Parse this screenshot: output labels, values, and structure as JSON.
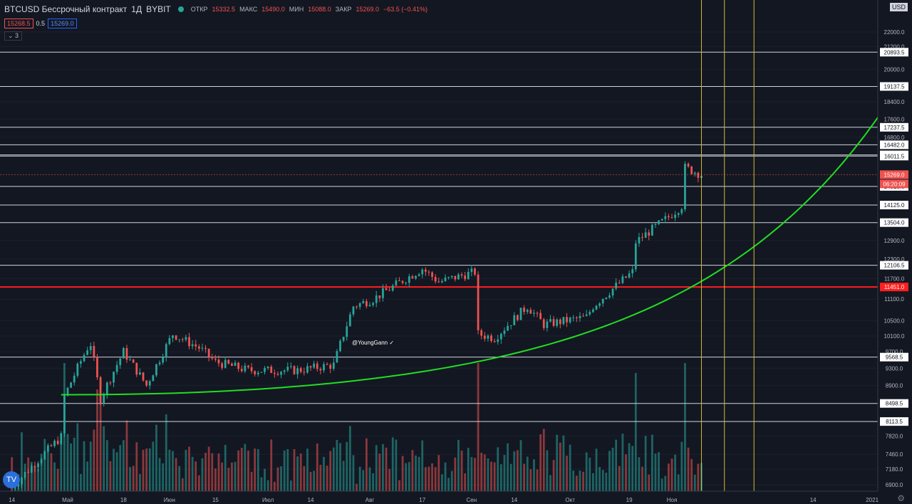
{
  "legend": {
    "symbol": "BTCUSD Бессрочный контракт",
    "interval": "1Д",
    "exchange": "BYBIT",
    "open_label": "ОТКР",
    "open": "15332.5",
    "high_label": "МАКС",
    "high": "15490.0",
    "low_label": "МИН",
    "low": "15088.0",
    "close_label": "ЗАКР",
    "close": "15269.0",
    "change": "−63.5 (−0.41%)",
    "bid": "15268.5",
    "spread": "0.5",
    "ask": "15269.0",
    "indicators": "3"
  },
  "currency": "USD",
  "watermark": "@YoungGann",
  "colors": {
    "up": "#26a69a",
    "down": "#ef5350",
    "level": "#d1d4dc",
    "red_level": "#ff1f1f",
    "curve": "#22dd22",
    "date_line": "#d4b832",
    "background": "#131722"
  },
  "chart_data": {
    "type": "candlestick",
    "title": "BTCUSD Бессрочный контракт · 1Д · BYBIT",
    "x_tick_labels": [
      "14",
      "Май",
      "18",
      "Июн",
      "15",
      "Июл",
      "14",
      "Авг",
      "17",
      "Сен",
      "14",
      "Окт",
      "19",
      "Ноя",
      "14",
      "2021"
    ],
    "y_tick_labels": [
      "22000.0",
      "21200.0",
      "20000.0",
      "18400.0",
      "17600.0",
      "16800.0",
      "12900.0",
      "12300.0",
      "11700.0",
      "11100.0",
      "10500.0",
      "10100.0",
      "9700.0",
      "9300.0",
      "8900.0",
      "7820.0",
      "7460.0",
      "7180.0",
      "6900.0"
    ],
    "ylim": [
      6850,
      22600
    ],
    "scale": "log",
    "horizontal_levels": [
      "20893.5",
      "19137.5",
      "17237.5",
      "16482.0",
      "16061.5",
      "16011.5",
      "14815.0",
      "14125.0",
      "13504.0",
      "12106.5",
      "9568.5",
      "8498.5",
      "8113.5"
    ],
    "red_level": "11451.0",
    "last_price": "15269.0",
    "countdown": "06:20:09",
    "vertical_dates": [
      "10 Ноя",
      "17 Ноя '20",
      "26 Ноя '20"
    ],
    "curve": {
      "type": "exponential",
      "from": [
        "2020-04-29",
        8690
      ],
      "to": [
        "2021-01-08",
        18880
      ]
    },
    "anchors": [
      [
        "2020-04-14",
        6850
      ],
      [
        "2020-04-29",
        7800
      ],
      [
        "2020-04-30",
        8650
      ],
      [
        "2020-05-07",
        9800
      ],
      [
        "2020-05-08",
        9900
      ],
      [
        "2020-05-11",
        8600
      ],
      [
        "2020-05-18",
        9700
      ],
      [
        "2020-05-25",
        8900
      ],
      [
        "2020-06-02",
        10150
      ],
      [
        "2020-06-10",
        9800
      ],
      [
        "2020-06-15",
        9450
      ],
      [
        "2020-06-25",
        9250
      ],
      [
        "2020-07-10",
        9250
      ],
      [
        "2020-07-21",
        9380
      ],
      [
        "2020-07-27",
        10900
      ],
      [
        "2020-08-02",
        11100
      ],
      [
        "2020-08-17",
        12000
      ],
      [
        "2020-08-22",
        11600
      ],
      [
        "2020-09-02",
        11900
      ],
      [
        "2020-09-03",
        10150
      ],
      [
        "2020-09-08",
        10050
      ],
      [
        "2020-09-18",
        10900
      ],
      [
        "2020-09-23",
        10400
      ],
      [
        "2020-10-06",
        10600
      ],
      [
        "2020-10-08",
        10900
      ],
      [
        "2020-10-20",
        11900
      ],
      [
        "2020-10-21",
        12850
      ],
      [
        "2020-10-31",
        13700
      ],
      [
        "2020-11-04",
        14100
      ],
      [
        "2020-11-05",
        15550
      ],
      [
        "2020-11-10",
        15269
      ]
    ]
  }
}
